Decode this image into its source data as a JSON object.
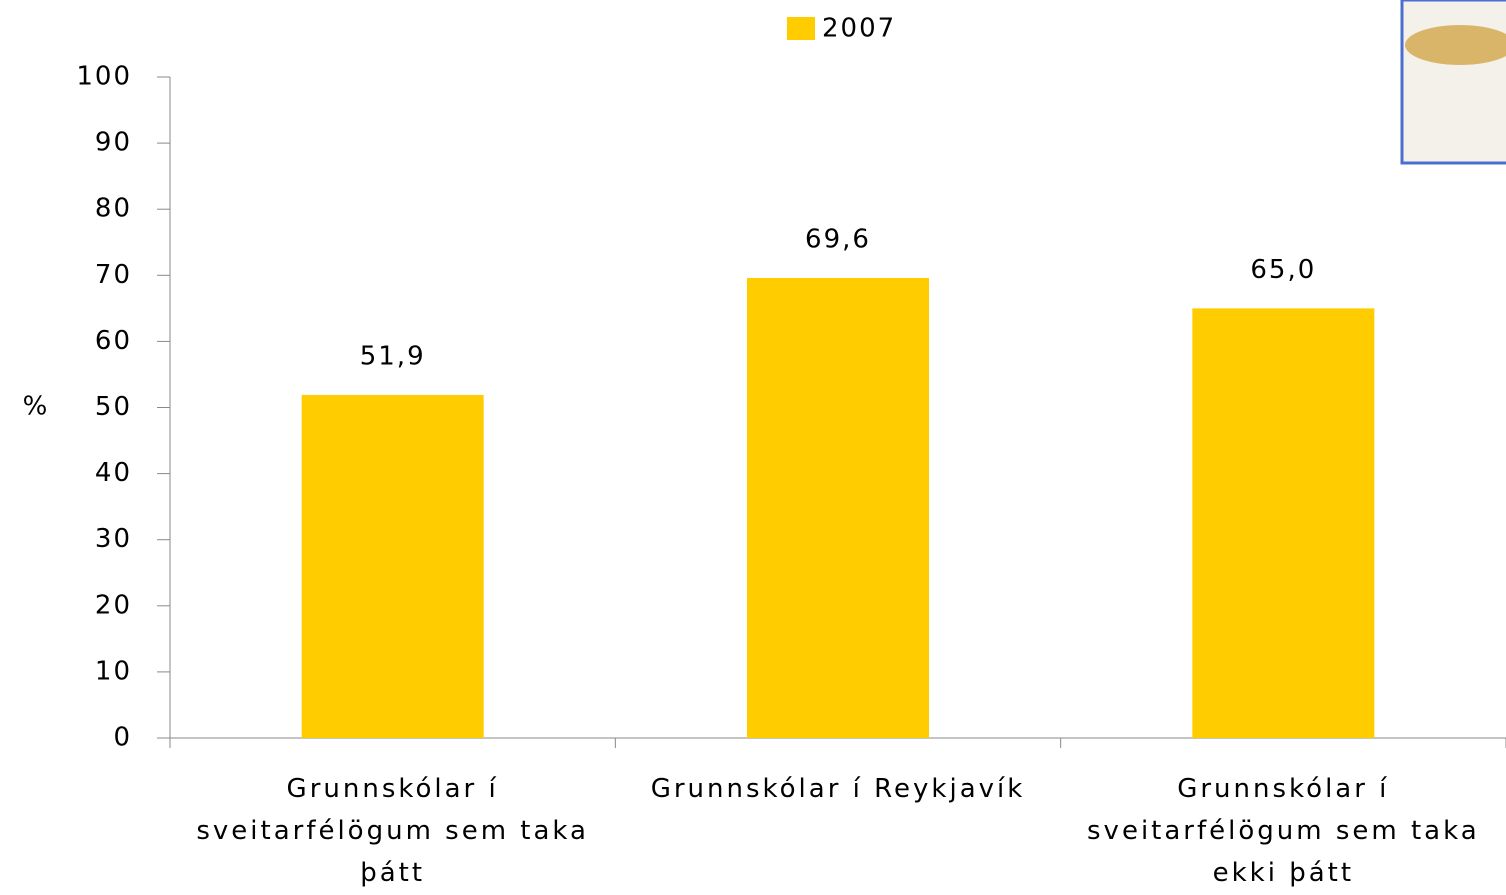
{
  "chart_data": {
    "type": "bar",
    "y_label": "%",
    "categories": [
      "Grunnskólar í sveitarfélögum sem taka þátt",
      "Grunnskólar í Reykjavík",
      "Grunnskólar í sveitarfélögum sem taka ekki þátt"
    ],
    "series": [
      {
        "name": "2007",
        "color": "#FFCC00",
        "values": [
          51.9,
          69.6,
          65.0
        ],
        "value_labels": [
          "51,9",
          "69,6",
          "65,0"
        ]
      }
    ],
    "ylim": [
      0,
      100
    ],
    "yticks": [
      0,
      10,
      20,
      30,
      40,
      50,
      60,
      70,
      80,
      90,
      100
    ],
    "legend": "top",
    "grid": false
  }
}
